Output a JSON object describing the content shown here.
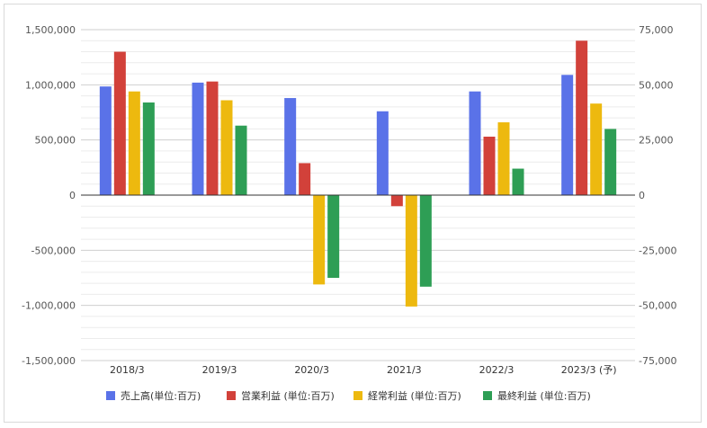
{
  "chart_data": {
    "type": "bar",
    "categories": [
      "2018/3",
      "2019/3",
      "2020/3",
      "2021/3",
      "2022/3",
      "2023/3 (予)"
    ],
    "series": [
      {
        "name": "売上高(単位:百万)",
        "color": "#5a72e8",
        "axis": "left",
        "values": [
          985000,
          1020000,
          880000,
          760000,
          940000,
          1090000
        ]
      },
      {
        "name": "営業利益 (単位:百万)",
        "color": "#d2413a",
        "axis": "right",
        "values": [
          65000,
          51500,
          14500,
          -5000,
          26500,
          70000
        ]
      },
      {
        "name": "経常利益 (単位:百万)",
        "color": "#edb90f",
        "axis": "right",
        "values": [
          47000,
          43000,
          -40500,
          -50500,
          33000,
          41500
        ]
      },
      {
        "name": "最終利益 (単位:百万)",
        "color": "#2e9e55",
        "axis": "right",
        "values": [
          42000,
          31500,
          -37500,
          -41500,
          12000,
          30000
        ]
      }
    ],
    "left_axis": {
      "ylim": [
        -1500000,
        1500000
      ],
      "ticks": [
        1500000,
        1000000,
        500000,
        0,
        -500000,
        -1000000,
        -1500000
      ],
      "tick_labels": [
        "1,500,000",
        "1,000,000",
        "500,000",
        "0",
        "-500,000",
        "-1,000,000",
        "-1,500,000"
      ]
    },
    "right_axis": {
      "ylim": [
        -75000,
        75000
      ],
      "ticks": [
        75000,
        50000,
        25000,
        0,
        -25000,
        -50000,
        -75000
      ],
      "tick_labels": [
        "75,000",
        "50,000",
        "25,000",
        "0",
        "-25,000",
        "-50,000",
        "-75,000"
      ]
    },
    "grid": true,
    "legend_position": "bottom"
  }
}
